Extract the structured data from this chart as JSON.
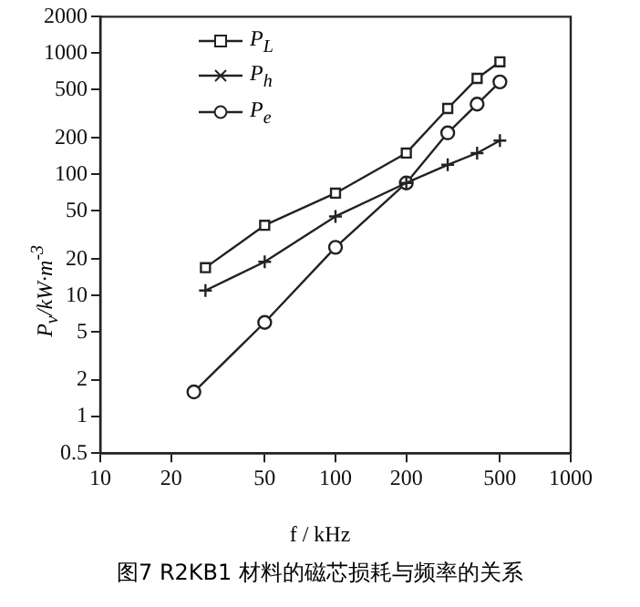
{
  "chart_data": {
    "type": "line",
    "xlabel": "f / kHz",
    "ylabel": "P$_{v}$/kW·m$^{-3}$",
    "log": "xy",
    "grid": false,
    "legend": "top left",
    "xlim": [
      10,
      1000
    ],
    "ylim": [
      0.5,
      2000
    ],
    "xticks": [
      10,
      20,
      50,
      100,
      200,
      500,
      1000
    ],
    "yticks": [
      0.5,
      1,
      2,
      5,
      10,
      20,
      50,
      100,
      200,
      500,
      1000,
      2000
    ],
    "series": [
      {
        "name": "P$_{L}$",
        "color": "#222222",
        "marker": "square",
        "x": [
          28,
          50,
          100,
          200,
          300,
          400,
          500
        ],
        "values": [
          17,
          38,
          70,
          150,
          350,
          620,
          850
        ]
      },
      {
        "name": "P$_{h}$",
        "color": "#222222",
        "marker": "cross",
        "x": [
          28,
          50,
          100,
          200,
          300,
          400,
          500
        ],
        "values": [
          11,
          19,
          45,
          85,
          120,
          150,
          190
        ]
      },
      {
        "name": "P$_{e}$",
        "color": "#222222",
        "marker": "circle",
        "x": [
          25,
          50,
          100,
          200,
          300,
          400,
          500
        ],
        "values": [
          1.6,
          6,
          25,
          85,
          220,
          380,
          580
        ]
      }
    ],
    "annotations": [
      "图7 R2KB1 材料的磁芯损耗与频率的关系"
    ]
  }
}
